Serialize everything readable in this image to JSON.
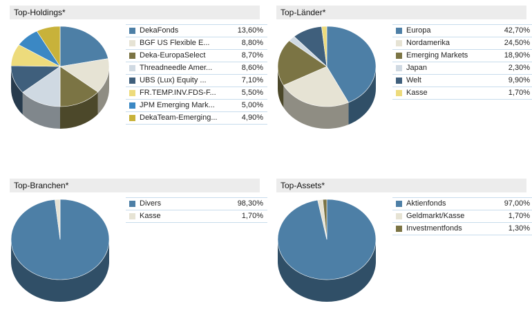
{
  "chart_data": [
    {
      "type": "pie",
      "title": "Top-Holdings*",
      "categories": [
        "DekaFonds",
        "BGF US Flexible E...",
        "Deka-EuropaSelect",
        "Threadneedle Amer...",
        "UBS (Lux) Equity ...",
        "FR.TEMP.INV.FDS-F...",
        "JPM Emerging Mark...",
        "DekaTeam-Emerging..."
      ],
      "values": [
        13.6,
        8.8,
        8.7,
        8.6,
        7.1,
        5.5,
        5.0,
        4.9
      ],
      "value_labels": [
        "13,60%",
        "8,80%",
        "8,70%",
        "8,60%",
        "7,10%",
        "5,50%",
        "5,00%",
        "4,90%"
      ],
      "colors": [
        "#4d7fa6",
        "#e6e3d4",
        "#7b7444",
        "#cfd9e2",
        "#3f5f7c",
        "#eddb7c",
        "#3b88c4",
        "#c8b23a"
      ]
    },
    {
      "type": "pie",
      "title": "Top-Länder*",
      "categories": [
        "Europa",
        "Nordamerika",
        "Emerging Markets",
        "Japan",
        "Welt",
        "Kasse"
      ],
      "values": [
        42.7,
        24.5,
        18.9,
        2.3,
        9.9,
        1.7
      ],
      "value_labels": [
        "42,70%",
        "24,50%",
        "18,90%",
        "2,30%",
        "9,90%",
        "1,70%"
      ],
      "colors": [
        "#4d7fa6",
        "#e6e3d4",
        "#7b7444",
        "#cfd9e2",
        "#3f5f7c",
        "#eddb7c"
      ]
    },
    {
      "type": "pie",
      "title": "Top-Branchen*",
      "categories": [
        "Divers",
        "Kasse"
      ],
      "values": [
        98.3,
        1.7
      ],
      "value_labels": [
        "98,30%",
        "1,70%"
      ],
      "colors": [
        "#4d7fa6",
        "#e6e3d4"
      ]
    },
    {
      "type": "pie",
      "title": "Top-Assets*",
      "categories": [
        "Aktienfonds",
        "Geldmarkt/Kasse",
        "Investmentfonds"
      ],
      "values": [
        97.0,
        1.7,
        1.3
      ],
      "value_labels": [
        "97,00%",
        "1,70%",
        "1,30%"
      ],
      "colors": [
        "#4d7fa6",
        "#e6e3d4",
        "#7b7444"
      ]
    }
  ]
}
